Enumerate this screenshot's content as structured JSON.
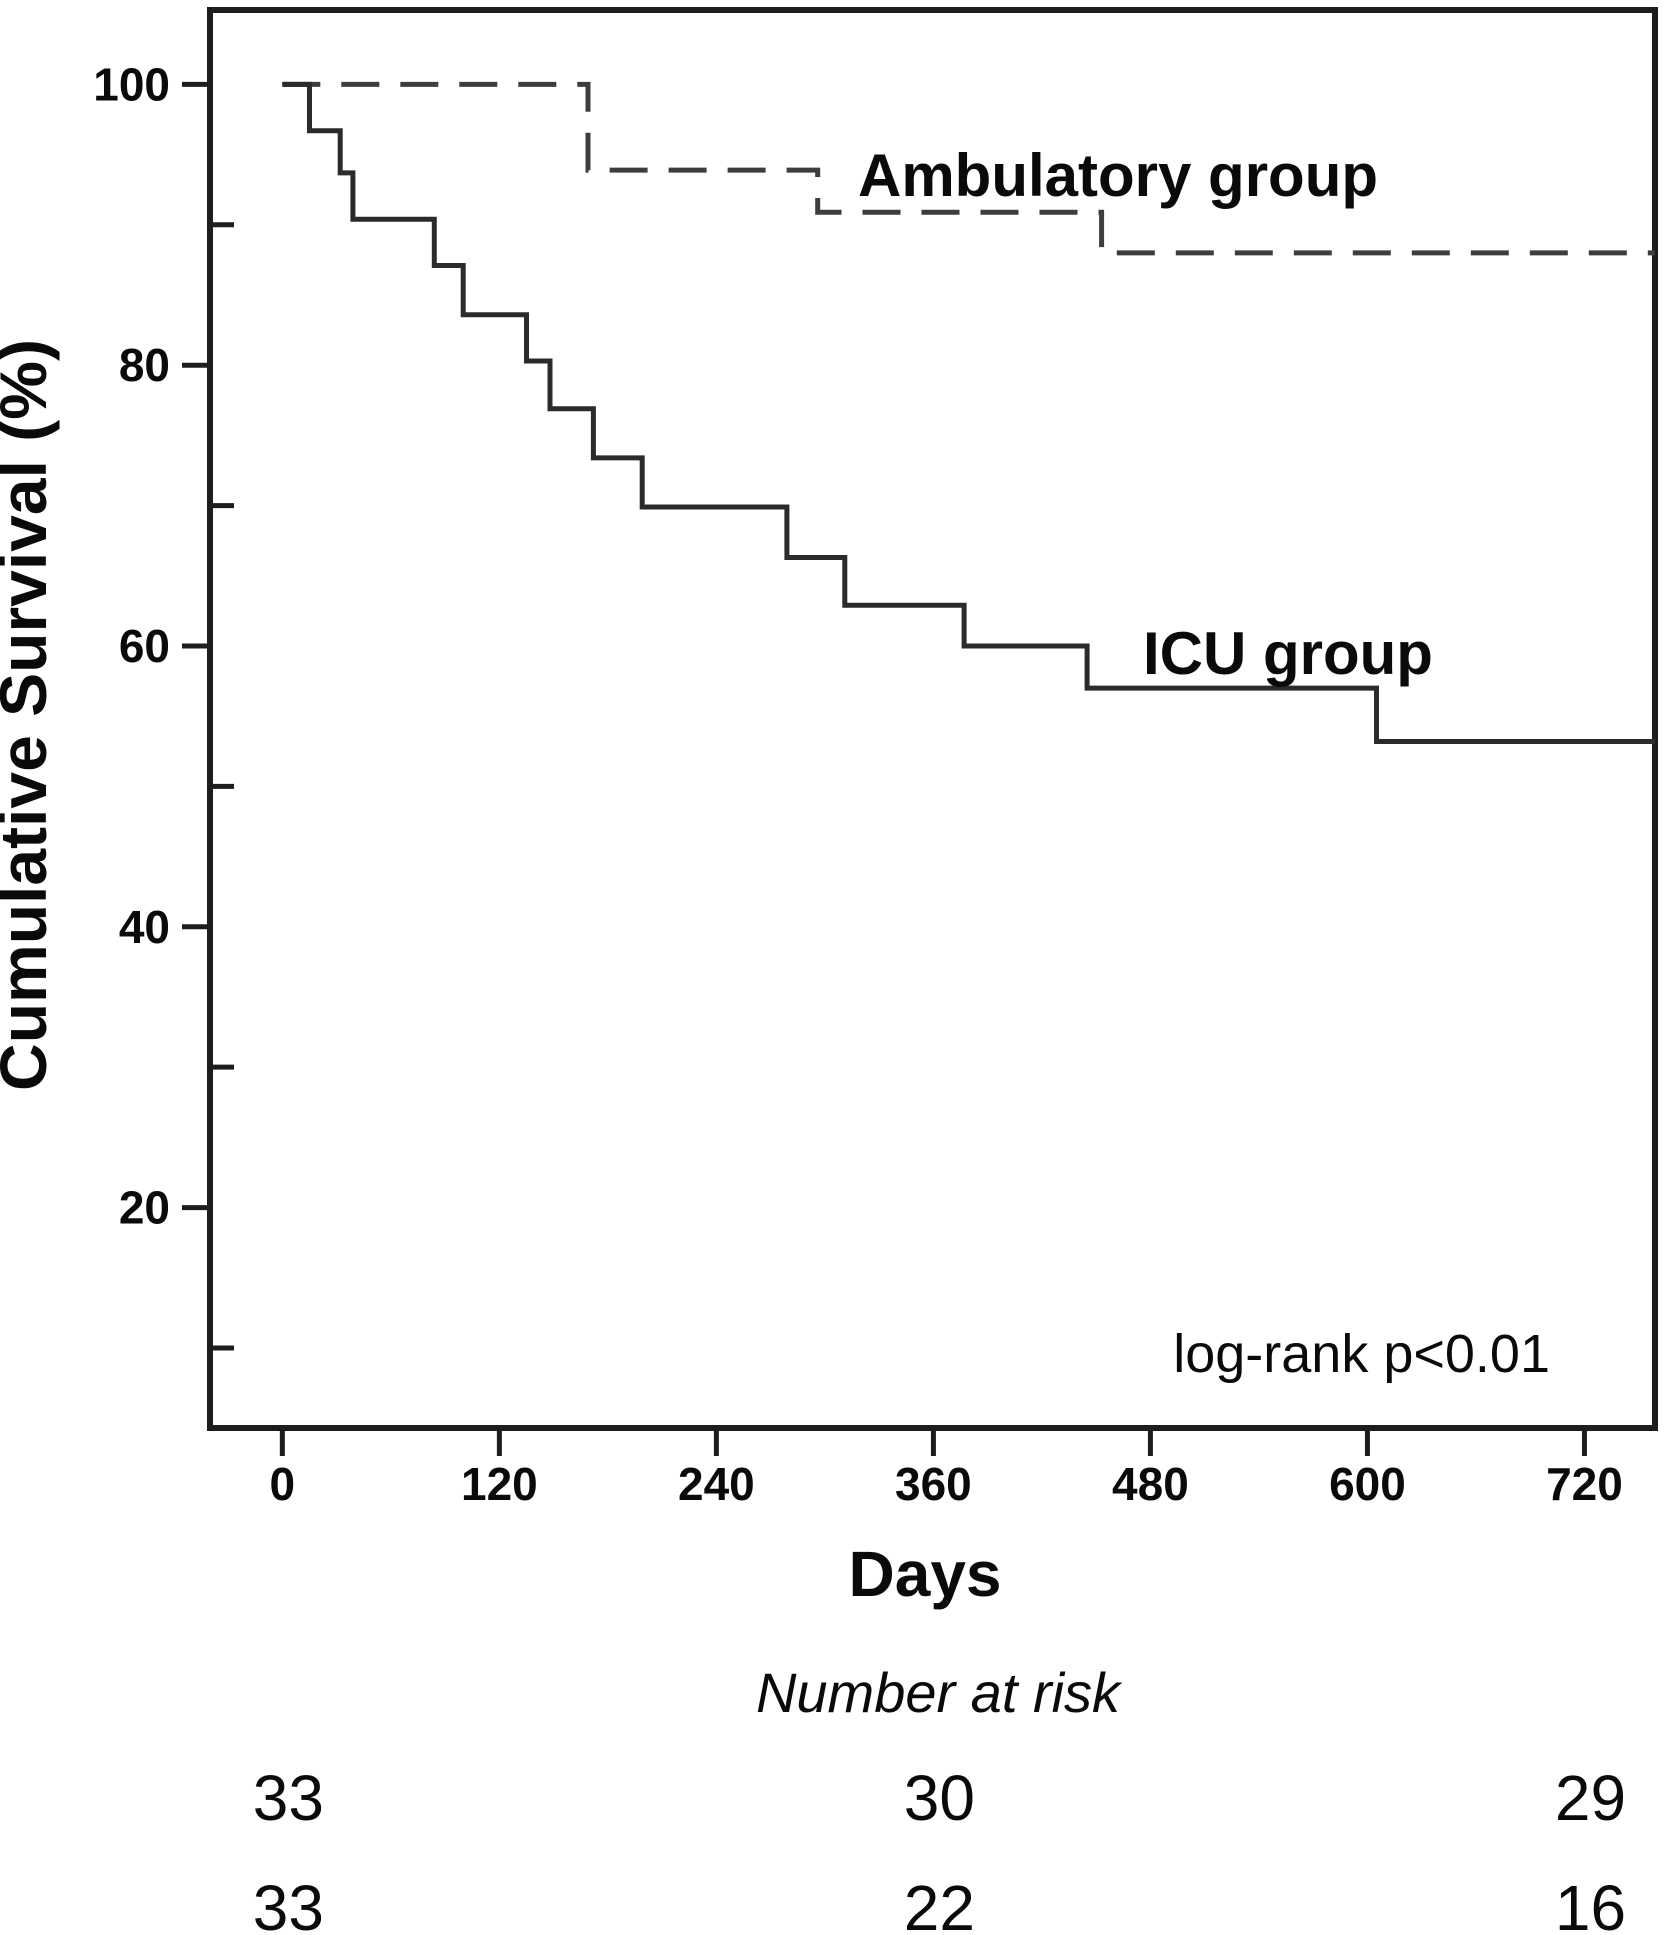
{
  "figure": {
    "background": "#ffffff",
    "frame_color": "#1d1d1d",
    "text_color": "#0a0a0a"
  },
  "chart_data": {
    "type": "line",
    "subtype": "kaplan-meier-step-curve",
    "title": "",
    "xlabel": "Days",
    "ylabel": "Cumulative Survival (%)",
    "xlim": [
      -40,
      759
    ],
    "ylim": [
      4.3,
      105.3
    ],
    "grid": false,
    "x_ticks": [
      0,
      120,
      240,
      360,
      480,
      600,
      720
    ],
    "y_ticks": [
      20,
      40,
      60,
      80,
      100
    ],
    "y_minor_ticks": [
      10,
      30,
      50,
      70,
      90
    ],
    "series": [
      {
        "name": "Ambulatory group",
        "line_style": "dashed",
        "color": "#3d3d3d",
        "points": [
          [
            0,
            100
          ],
          [
            169,
            93.9
          ],
          [
            296,
            90.9
          ],
          [
            453,
            88.0
          ]
        ],
        "end_day": 759
      },
      {
        "name": "ICU group",
        "line_style": "solid",
        "color": "#2b2b2b",
        "points": [
          [
            0,
            100
          ],
          [
            15,
            96.7
          ],
          [
            32,
            93.7
          ],
          [
            39,
            90.4
          ],
          [
            84,
            87.1
          ],
          [
            100,
            83.6
          ],
          [
            135,
            80.3
          ],
          [
            148,
            76.9
          ],
          [
            172,
            73.4
          ],
          [
            199,
            69.9
          ],
          [
            279,
            66.3
          ],
          [
            311,
            62.9
          ],
          [
            377,
            60.0
          ],
          [
            445,
            57.0
          ],
          [
            605,
            53.2
          ]
        ],
        "end_day": 759
      }
    ],
    "annotations": {
      "log_rank": "log-rank p<0.01"
    },
    "number_at_risk": {
      "title": "Number at risk",
      "time_points": [
        0,
        360,
        720
      ],
      "rows": [
        {
          "group": "Ambulatory group",
          "counts": [
            "33",
            "30",
            "29"
          ]
        },
        {
          "group": "ICU group",
          "counts": [
            "33",
            "22",
            "16"
          ]
        }
      ]
    }
  }
}
